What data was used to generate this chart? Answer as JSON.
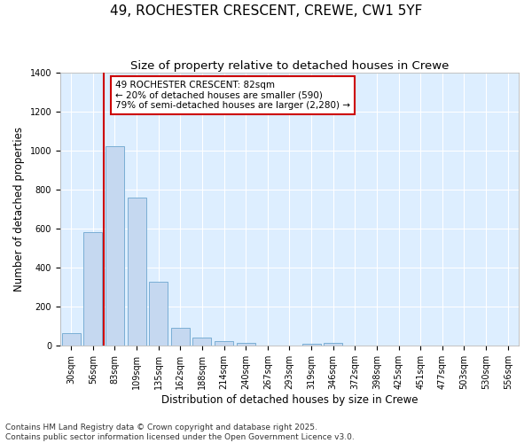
{
  "title_line1": "49, ROCHESTER CRESCENT, CREWE, CW1 5YF",
  "title_line2": "Size of property relative to detached houses in Crewe",
  "xlabel": "Distribution of detached houses by size in Crewe",
  "ylabel": "Number of detached properties",
  "categories": [
    "30sqm",
    "56sqm",
    "83sqm",
    "109sqm",
    "135sqm",
    "162sqm",
    "188sqm",
    "214sqm",
    "240sqm",
    "267sqm",
    "293sqm",
    "319sqm",
    "346sqm",
    "372sqm",
    "398sqm",
    "425sqm",
    "451sqm",
    "477sqm",
    "503sqm",
    "530sqm",
    "556sqm"
  ],
  "values": [
    65,
    580,
    1020,
    760,
    325,
    90,
    38,
    22,
    12,
    0,
    0,
    8,
    14,
    0,
    0,
    0,
    0,
    0,
    0,
    0,
    0
  ],
  "bar_color": "#c5d8f0",
  "bar_edge_color": "#7aaed4",
  "vline_x_idx": 1.5,
  "vline_color": "#cc0000",
  "annotation_text": "49 ROCHESTER CRESCENT: 82sqm\n← 20% of detached houses are smaller (590)\n79% of semi-detached houses are larger (2,280) →",
  "annotation_box_color": "#ffffff",
  "annotation_box_edge": "#cc0000",
  "ylim": [
    0,
    1400
  ],
  "yticks": [
    0,
    200,
    400,
    600,
    800,
    1000,
    1200,
    1400
  ],
  "fig_background": "#ffffff",
  "plot_background": "#ddeeff",
  "grid_color": "#ffffff",
  "footer_line1": "Contains HM Land Registry data © Crown copyright and database right 2025.",
  "footer_line2": "Contains public sector information licensed under the Open Government Licence v3.0.",
  "title_fontsize": 11,
  "subtitle_fontsize": 9.5,
  "axis_label_fontsize": 8.5,
  "tick_fontsize": 7,
  "annotation_fontsize": 7.5,
  "footer_fontsize": 6.5
}
